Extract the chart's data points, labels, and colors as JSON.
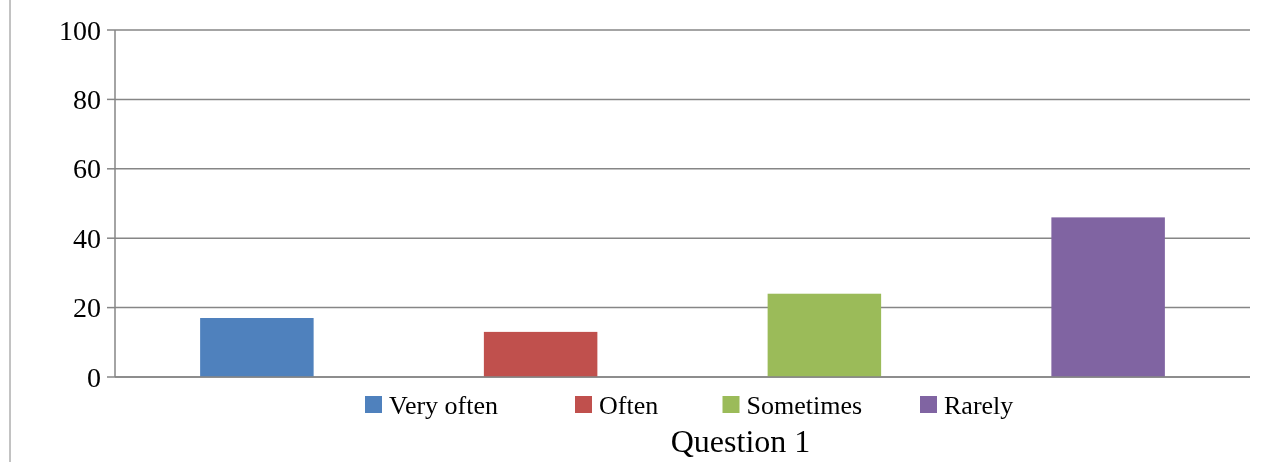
{
  "chart_data": {
    "type": "bar",
    "categories": [
      "Question 1"
    ],
    "series": [
      {
        "name": "Very often",
        "color": "#4f81bd",
        "values": [
          17
        ]
      },
      {
        "name": "Often",
        "color": "#c0504d",
        "values": [
          13
        ]
      },
      {
        "name": "Sometimes",
        "color": "#9bbb59",
        "values": [
          24
        ]
      },
      {
        "name": "Rarely",
        "color": "#8064a2",
        "values": [
          46
        ]
      }
    ],
    "ylim": [
      0,
      100
    ],
    "yticks": [
      0,
      20,
      40,
      60,
      80,
      100
    ],
    "grid": "y",
    "legend": "bottom"
  }
}
